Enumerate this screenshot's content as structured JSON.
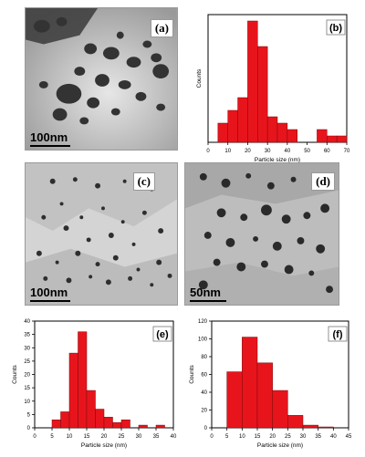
{
  "panels": {
    "a": {
      "label": "(a)",
      "scale": "100nm"
    },
    "c": {
      "label": "(c)",
      "scale": "100nm"
    },
    "d": {
      "label": "(d)",
      "scale": "50nm"
    }
  },
  "chart_data": [
    {
      "id": "b",
      "type": "bar",
      "panel_label": "(b)",
      "xlabel": "Particle size (nm)",
      "ylabel": "Counts",
      "bin_width": 5,
      "bin_starts": [
        5,
        10,
        15,
        20,
        25,
        30,
        35,
        40,
        45,
        50,
        55,
        60,
        65
      ],
      "values": [
        3,
        5,
        7,
        19,
        15,
        4,
        3,
        2,
        0,
        0,
        2,
        1,
        1
      ],
      "xlim": [
        0,
        70
      ],
      "ylim": [
        0,
        20
      ],
      "xticks": [
        0,
        10,
        20,
        30,
        40,
        50,
        60,
        70
      ],
      "xtick_labels": [
        "0",
        "10",
        "20",
        "30",
        "40",
        "50",
        "60",
        "70"
      ],
      "yticks": [],
      "ytick_labels": [],
      "bar_color": "#e8141c"
    },
    {
      "id": "e",
      "type": "bar",
      "panel_label": "(e)",
      "xlabel": "Particle size (nm)",
      "ylabel": "Counts",
      "bin_width": 2.5,
      "bin_starts": [
        5,
        7.5,
        10,
        12.5,
        15,
        17.5,
        20,
        22.5,
        25,
        27.5,
        30,
        32.5,
        35,
        37.5
      ],
      "values": [
        3,
        6,
        28,
        36,
        14,
        7,
        4,
        2,
        3,
        0,
        1,
        0,
        1,
        0
      ],
      "xlim": [
        0,
        40
      ],
      "ylim": [
        0,
        40
      ],
      "xticks": [
        0,
        5,
        10,
        15,
        20,
        25,
        30,
        35,
        40
      ],
      "xtick_labels": [
        "0",
        "5",
        "10",
        "15",
        "20",
        "25",
        "30",
        "35",
        "40"
      ],
      "yticks": [
        0,
        5,
        10,
        15,
        20,
        25,
        30,
        35,
        40
      ],
      "ytick_labels": [
        "0",
        "5",
        "10",
        "15",
        "20",
        "25",
        "30",
        "35",
        "40"
      ],
      "bar_color": "#e8141c"
    },
    {
      "id": "f",
      "type": "bar",
      "panel_label": "(f)",
      "xlabel": "Particle size (nm)",
      "ylabel": "Counts",
      "bin_width": 5,
      "bin_starts": [
        5,
        10,
        15,
        20,
        25,
        30,
        35,
        40
      ],
      "values": [
        63,
        102,
        73,
        42,
        14,
        3,
        1,
        0
      ],
      "xlim": [
        0,
        45
      ],
      "ylim": [
        0,
        120
      ],
      "xticks": [
        0,
        5,
        10,
        15,
        20,
        25,
        30,
        35,
        40,
        45
      ],
      "xtick_labels": [
        "0",
        "5",
        "10",
        "15",
        "20",
        "25",
        "30",
        "35",
        "40",
        "45"
      ],
      "yticks": [
        0,
        20,
        40,
        60,
        80,
        100,
        120
      ],
      "ytick_labels": [
        "0",
        "20",
        "40",
        "60",
        "80",
        "100",
        "120"
      ],
      "bar_color": "#e8141c"
    }
  ]
}
